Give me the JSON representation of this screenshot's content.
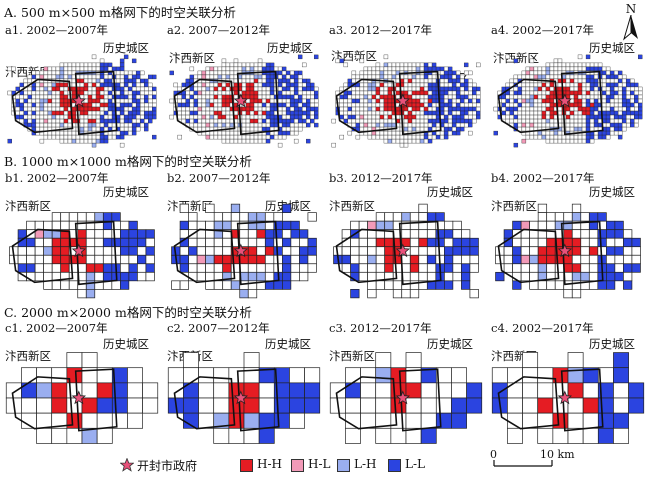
{
  "sections": [
    {
      "title": "A. 500 m×500 m格网下的时空关联分析",
      "grid": 34,
      "panels": [
        {
          "title": "a1. 2002—2007年",
          "labels": {
            "new": "汴西新区",
            "old": "历史城区"
          },
          "seed": 11
        },
        {
          "title": "a2. 2007—2012年",
          "labels": {
            "new": "汴西新区",
            "old": "历史城区"
          },
          "seed": 12
        },
        {
          "title": "a3. 2012—2017年",
          "labels": {
            "new": "汴西新区",
            "old": "历史城区"
          },
          "seed": 13
        },
        {
          "title": "a4. 2002—2017年",
          "labels": {
            "new": "汴西新区",
            "old": "历史城区"
          },
          "seed": 14
        }
      ]
    },
    {
      "title": "B. 1000 m×1000 m格网下的时空关联分析",
      "grid": 16,
      "panels": [
        {
          "title": "b1. 2002—2007年",
          "labels": {
            "new": "汴西新区",
            "old": "历史城区"
          },
          "seed": 21
        },
        {
          "title": "b2. 2007—2012年",
          "labels": {
            "new": "汴西新区",
            "old": "历史城区"
          },
          "seed": 22
        },
        {
          "title": "b3. 2012—2017年",
          "labels": {
            "new": "汴西新区",
            "old": "历史城区"
          },
          "seed": 23
        },
        {
          "title": "b4. 2002—2017年",
          "labels": {
            "new": "汴西新区",
            "old": "历史城区"
          },
          "seed": 24
        }
      ]
    },
    {
      "title": "C. 2000 m×2000 m格网下的时空关联分析",
      "grid": 9,
      "panels": [
        {
          "title": "c1. 2002—2007年",
          "labels": {
            "new": "汴西新区",
            "old": "历史城区"
          },
          "seed": 31
        },
        {
          "title": "c2. 2007—2012年",
          "labels": {
            "new": "汴西新区",
            "old": "历史城区"
          },
          "seed": 32
        },
        {
          "title": "c3. 2012—2017年",
          "labels": {
            "new": "汴西新区",
            "old": "历史城区"
          },
          "seed": 33
        },
        {
          "title": "c4. 2002—2017年",
          "labels": {
            "new": "汴西新区",
            "old": "历史城区"
          },
          "seed": 34
        }
      ]
    }
  ],
  "legend": {
    "government": "开封市政府",
    "hh": "H-H",
    "hl": "H-L",
    "lh": "L-H",
    "ll": "L-L"
  },
  "colors": {
    "hh": "#e51c23",
    "hl": "#f29ab8",
    "lh": "#9aaef0",
    "ll": "#2b44e0",
    "star": "#e8517a",
    "grid_line": "#222222"
  },
  "compass": {
    "label": "N"
  },
  "scalebar": {
    "start": "0",
    "end": "10 km"
  }
}
